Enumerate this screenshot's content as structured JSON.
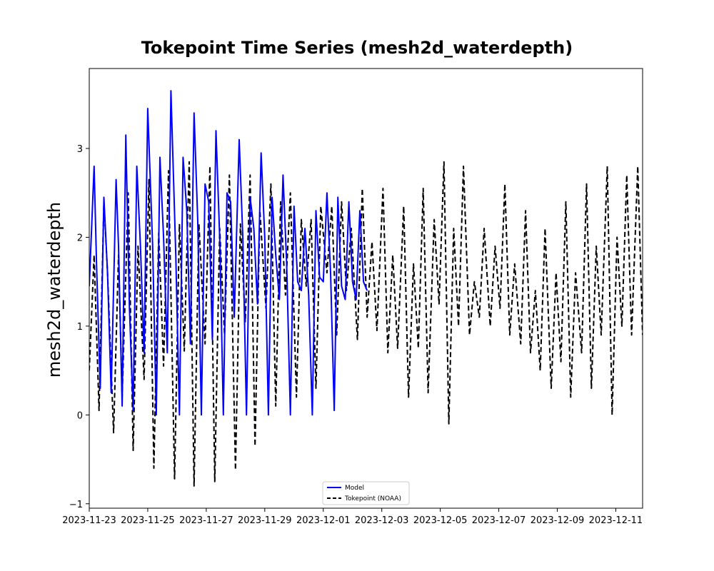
{
  "chart_data": {
    "type": "line",
    "title": "Tokepoint Time Series (mesh2d_waterdepth)",
    "xlabel": "",
    "ylabel": "mesh2d_waterdepth",
    "xlim": [
      "2023-11-23",
      "2023-12-11T22:00"
    ],
    "ylim": [
      -1.05,
      3.9
    ],
    "grid": false,
    "legend_position": "bottom-center",
    "x_ticks": [
      "2023-11-23",
      "2023-11-25",
      "2023-11-27",
      "2023-11-29",
      "2023-12-01",
      "2023-12-03",
      "2023-12-05",
      "2023-12-07",
      "2023-12-09",
      "2023-12-11"
    ],
    "y_ticks": [
      "−1",
      "0",
      "1",
      "2",
      "3"
    ],
    "y_tick_values": [
      -1,
      0,
      1,
      2,
      3
    ],
    "series": [
      {
        "name": "Model",
        "color": "#0000ff",
        "style": "solid",
        "x": [
          "2023-11-23T00:00",
          "2023-11-23T04:00",
          "2023-11-23T06:00",
          "2023-11-23T09:00",
          "2023-11-23T12:00",
          "2023-11-23T15:00",
          "2023-11-23T18:00",
          "2023-11-23T22:00",
          "2023-11-24T00:00",
          "2023-11-24T03:00",
          "2023-11-24T06:00",
          "2023-11-24T09:00",
          "2023-11-24T12:00",
          "2023-11-24T15:00",
          "2023-11-24T18:00",
          "2023-11-24T21:00",
          "2023-11-25T00:00",
          "2023-11-25T04:00",
          "2023-11-25T07:00",
          "2023-11-25T10:00",
          "2023-11-25T13:00",
          "2023-11-25T16:00",
          "2023-11-25T19:00",
          "2023-11-25T23:00",
          "2023-11-26T02:00",
          "2023-11-26T05:00",
          "2023-11-26T08:00",
          "2023-11-26T11:00",
          "2023-11-26T14:00",
          "2023-11-26T17:00",
          "2023-11-26T20:00",
          "2023-11-26T23:00",
          "2023-11-27T02:00",
          "2023-11-27T05:00",
          "2023-11-27T08:00",
          "2023-11-27T11:00",
          "2023-11-27T14:00",
          "2023-11-27T17:00",
          "2023-11-27T20:00",
          "2023-11-27T23:00",
          "2023-11-28T03:00",
          "2023-11-28T06:00",
          "2023-11-28T09:00",
          "2023-11-28T12:00",
          "2023-11-28T15:00",
          "2023-11-28T18:00",
          "2023-11-28T21:00",
          "2023-11-29T00:00",
          "2023-11-29T03:00",
          "2023-11-29T06:00",
          "2023-11-29T09:00",
          "2023-11-29T12:00",
          "2023-11-29T15:00",
          "2023-11-29T18:00",
          "2023-11-29T21:00",
          "2023-11-30T00:00",
          "2023-11-30T03:00",
          "2023-11-30T06:00",
          "2023-11-30T09:00",
          "2023-11-30T12:00",
          "2023-11-30T15:00",
          "2023-11-30T18:00",
          "2023-11-30T21:00",
          "2023-12-01T00:00",
          "2023-12-01T03:00",
          "2023-12-01T06:00",
          "2023-12-01T09:00",
          "2023-12-01T12:00",
          "2023-12-01T15:00",
          "2023-12-01T18:00",
          "2023-12-01T21:00",
          "2023-12-02T00:00",
          "2023-12-02T03:00",
          "2023-12-02T06:00",
          "2023-12-02T09:00",
          "2023-12-02T12:00"
        ],
        "y": [
          1.45,
          2.8,
          1.7,
          0.3,
          2.45,
          1.6,
          0.25,
          2.65,
          1.9,
          0.1,
          3.15,
          1.2,
          0.05,
          2.8,
          1.9,
          0.7,
          3.45,
          1.9,
          0.0,
          2.9,
          2.0,
          0.7,
          3.65,
          1.8,
          0.0,
          2.9,
          2.3,
          0.8,
          3.4,
          2.2,
          0.0,
          2.6,
          2.4,
          0.85,
          3.2,
          2.0,
          0.0,
          2.5,
          2.4,
          1.1,
          3.1,
          2.0,
          0.0,
          2.45,
          2.1,
          1.25,
          2.95,
          2.0,
          0.0,
          2.45,
          1.8,
          1.3,
          2.7,
          1.7,
          0.0,
          2.35,
          1.5,
          1.4,
          2.1,
          1.35,
          0.0,
          2.3,
          1.55,
          1.5,
          2.5,
          1.6,
          0.05,
          2.45,
          1.45,
          1.3,
          2.4,
          1.5,
          1.3,
          2.3,
          1.5,
          1.4
        ]
      },
      {
        "name": "Tokepoint (NOAA)",
        "color": "#000000",
        "style": "dashed",
        "x": [
          "2023-11-23T00:00",
          "2023-11-23T04:00",
          "2023-11-23T08:00",
          "2023-11-23T12:00",
          "2023-11-23T15:00",
          "2023-11-23T20:00",
          "2023-11-24T00:00",
          "2023-11-24T03:00",
          "2023-11-24T08:00",
          "2023-11-24T12:00",
          "2023-11-24T16:00",
          "2023-11-24T21:00",
          "2023-11-25T01:00",
          "2023-11-25T05:00",
          "2023-11-25T09:00",
          "2023-11-25T13:00",
          "2023-11-25T17:00",
          "2023-11-25T22:00",
          "2023-11-26T02:00",
          "2023-11-26T06:00",
          "2023-11-26T10:00",
          "2023-11-26T14:00",
          "2023-11-26T18:00",
          "2023-11-26T23:00",
          "2023-11-27T03:00",
          "2023-11-27T07:00",
          "2023-11-27T11:00",
          "2023-11-27T15:00",
          "2023-11-27T19:00",
          "2023-11-28T00:00",
          "2023-11-28T04:00",
          "2023-11-28T08:00",
          "2023-11-28T12:00",
          "2023-11-28T16:00",
          "2023-11-28T20:00",
          "2023-11-29T01:00",
          "2023-11-29T05:00",
          "2023-11-29T09:00",
          "2023-11-29T13:00",
          "2023-11-29T17:00",
          "2023-11-29T21:00",
          "2023-11-30T02:00",
          "2023-11-30T06:00",
          "2023-11-30T10:00",
          "2023-11-30T14:00",
          "2023-11-30T18:00",
          "2023-11-30T22:00",
          "2023-12-01T03:00",
          "2023-12-01T07:00",
          "2023-12-01T11:00",
          "2023-12-01T15:00",
          "2023-12-01T19:00",
          "2023-12-01T23:00",
          "2023-12-02T04:00",
          "2023-12-02T08:00",
          "2023-12-02T12:00",
          "2023-12-02T16:00",
          "2023-12-02T20:00",
          "2023-12-03T01:00",
          "2023-12-03T05:00",
          "2023-12-03T09:00",
          "2023-12-03T13:00",
          "2023-12-03T18:00",
          "2023-12-03T22:00",
          "2023-12-04T02:00",
          "2023-12-04T06:00",
          "2023-12-04T10:00",
          "2023-12-04T14:00",
          "2023-12-04T19:00",
          "2023-12-04T23:00",
          "2023-12-05T03:00",
          "2023-12-05T07:00",
          "2023-12-05T11:00",
          "2023-12-05T15:00",
          "2023-12-05T19:00",
          "2023-12-06T00:00",
          "2023-12-06T04:00",
          "2023-12-06T08:00",
          "2023-12-06T12:00",
          "2023-12-06T17:00",
          "2023-12-06T21:00",
          "2023-12-07T01:00",
          "2023-12-07T05:00",
          "2023-12-07T09:00",
          "2023-12-07T13:00",
          "2023-12-07T18:00",
          "2023-12-07T22:00",
          "2023-12-08T02:00",
          "2023-12-08T06:00",
          "2023-12-08T10:00",
          "2023-12-08T14:00",
          "2023-12-08T19:00",
          "2023-12-08T23:00",
          "2023-12-09T03:00",
          "2023-12-09T07:00",
          "2023-12-09T11:00",
          "2023-12-09T15:00",
          "2023-12-09T20:00",
          "2023-12-10T00:00",
          "2023-12-10T04:00",
          "2023-12-10T08:00",
          "2023-12-10T12:00",
          "2023-12-10T17:00",
          "2023-12-10T21:00",
          "2023-12-11T01:00",
          "2023-12-11T05:00",
          "2023-12-11T09:00",
          "2023-12-11T13:00",
          "2023-12-11T18:00",
          "2023-12-11T22:00"
        ],
        "y": [
          0.5,
          1.8,
          0.05,
          2.4,
          1.6,
          -0.2,
          1.8,
          0.2,
          2.5,
          -0.4,
          1.9,
          0.4,
          2.65,
          -0.6,
          2.05,
          0.55,
          2.75,
          -0.72,
          2.15,
          0.72,
          2.85,
          -0.8,
          2.15,
          0.8,
          2.8,
          -0.75,
          2.1,
          0.9,
          2.7,
          -0.62,
          2.15,
          1.05,
          2.7,
          -0.35,
          2.3,
          1.2,
          2.6,
          0.1,
          2.4,
          1.35,
          2.5,
          0.2,
          2.2,
          1.45,
          2.2,
          0.3,
          2.35,
          1.6,
          2.35,
          0.9,
          2.4,
          1.4,
          2.1,
          0.85,
          2.55,
          1.1,
          1.95,
          0.95,
          2.55,
          0.7,
          1.8,
          0.75,
          2.35,
          0.2,
          1.7,
          0.75,
          2.55,
          0.25,
          2.2,
          1.25,
          2.85,
          -0.1,
          2.1,
          1.0,
          2.8,
          0.9,
          1.5,
          1.1,
          2.1,
          1.0,
          1.9,
          1.2,
          2.6,
          0.9,
          1.7,
          0.8,
          2.3,
          0.7,
          1.4,
          0.5,
          2.1,
          0.3,
          1.6,
          0.6,
          2.4,
          0.2,
          1.6,
          0.7,
          2.6,
          0.3,
          1.9,
          0.9,
          2.8,
          0.0,
          2.0,
          1.0,
          2.7,
          0.9,
          2.8,
          0.9
        ]
      }
    ]
  }
}
